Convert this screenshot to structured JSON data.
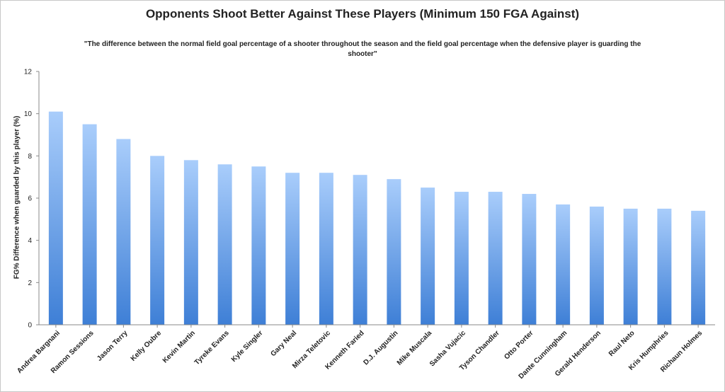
{
  "chart_data": {
    "type": "bar",
    "title": "Opponents Shoot Better Against These Players (Minimum 150 FGA Against)",
    "subtitle": "\"The difference between the normal field goal percentage of a shooter throughout the season and the field goal percentage when the defensive player is guarding the shooter\"",
    "ylabel": "FG% Difference when guarded by this player (%)",
    "xlabel": "",
    "ylim": [
      0,
      12
    ],
    "yticks": [
      "0",
      "2",
      "4",
      "6",
      "8",
      "10",
      "12"
    ],
    "grid": false,
    "legend": "none",
    "categories": [
      "Andrea Bargnani",
      "Ramon Sessions",
      "Jason Terry",
      "Kelly Oubre",
      "Kevin Martin",
      "Tyreke Evans",
      "Kyle Singler",
      "Gary Neal",
      "Mirza Teletovic",
      "Kenneth Faried",
      "D.J. Augustin",
      "Mike Muscala",
      "Sasha Vujacic",
      "Tyson Chandler",
      "Otto Porter",
      "Dante Cunningham",
      "Gerald Henderson",
      "Raul Neto",
      "Kris Humphries",
      "Richaun Holmes"
    ],
    "values": [
      10.1,
      9.5,
      8.8,
      8.0,
      7.8,
      7.6,
      7.5,
      7.2,
      7.2,
      7.1,
      6.9,
      6.5,
      6.3,
      6.3,
      6.2,
      5.7,
      5.6,
      5.5,
      5.5,
      5.4
    ],
    "colors": {
      "bar_top": "#a9cdfb",
      "bar_bottom": "#3e7fd6",
      "axis": "#888888",
      "text": "#222222"
    }
  }
}
